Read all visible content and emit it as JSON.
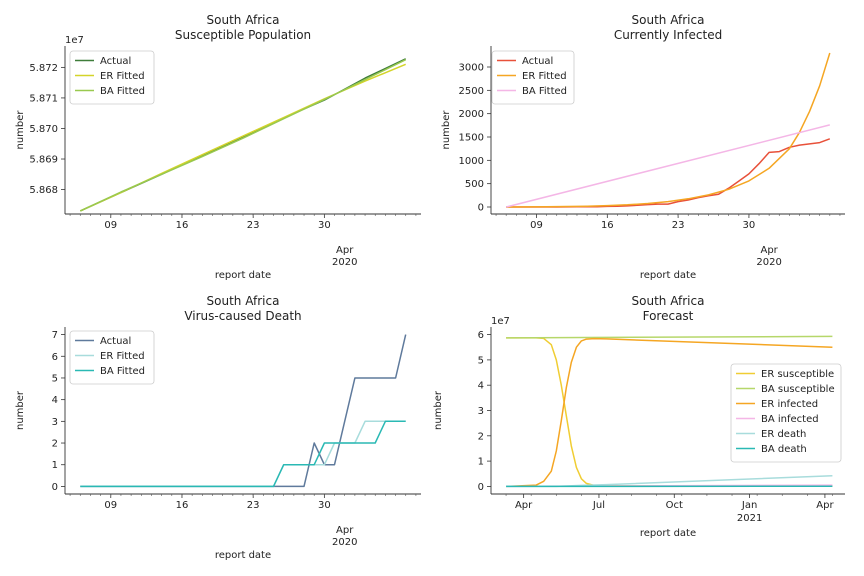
{
  "figure": {
    "width": 864,
    "height": 576
  },
  "chart_data": [
    {
      "id": "susceptible",
      "type": "line",
      "title": [
        "South Africa",
        "Susceptible Population"
      ],
      "xlabel": "report date",
      "ylabel": "number",
      "offset_text": "1e7",
      "x": [
        0,
        32
      ],
      "xlim": [
        -1.5,
        33.5
      ],
      "ylim": [
        5.8672,
        5.8727
      ],
      "xticks": [
        {
          "v": 3,
          "label": "09"
        },
        {
          "v": 10,
          "label": "16"
        },
        {
          "v": 17,
          "label": "23"
        },
        {
          "v": 24,
          "label": "30"
        }
      ],
      "xtick_secondary": {
        "v": 26,
        "label": "Apr",
        "label2": "2020"
      },
      "yticks": [
        {
          "v": 5.868,
          "label": "5.868"
        },
        {
          "v": 5.869,
          "label": "5.869"
        },
        {
          "v": 5.87,
          "label": "5.870"
        },
        {
          "v": 5.871,
          "label": "5.871"
        },
        {
          "v": 5.872,
          "label": "5.872"
        }
      ],
      "legend": {
        "position": "upper-left"
      },
      "series": [
        {
          "name": "Actual",
          "color": "#3f7d3a",
          "x": [
            0,
            4,
            8,
            12,
            16,
            20,
            24,
            28,
            32
          ],
          "y": [
            5.8673,
            5.8679,
            5.8685,
            5.86912,
            5.86973,
            5.87035,
            5.87093,
            5.87165,
            5.87228
          ]
        },
        {
          "name": "ER Fitted",
          "color": "#d4d42a",
          "x": [
            0,
            4,
            8,
            12,
            16,
            20,
            24,
            28,
            32
          ],
          "y": [
            5.8673,
            5.8679,
            5.86853,
            5.86914,
            5.86975,
            5.87036,
            5.87097,
            5.87155,
            5.8721
          ]
        },
        {
          "name": "BA Fitted",
          "color": "#99c94f",
          "x": [
            0,
            4,
            8,
            12,
            16,
            20,
            24,
            28,
            32
          ],
          "y": [
            5.8673,
            5.86792,
            5.8685,
            5.86908,
            5.86968,
            5.87032,
            5.87095,
            5.8716,
            5.87225
          ]
        }
      ]
    },
    {
      "id": "infected",
      "type": "line",
      "title": [
        "South Africa",
        "Currently Infected"
      ],
      "xlabel": "report date",
      "ylabel": "number",
      "offset_text": "",
      "xlim": [
        -1.5,
        33.5
      ],
      "ylim": [
        -150,
        3450
      ],
      "xticks": [
        {
          "v": 3,
          "label": "09"
        },
        {
          "v": 10,
          "label": "16"
        },
        {
          "v": 17,
          "label": "23"
        },
        {
          "v": 24,
          "label": "30"
        }
      ],
      "xtick_secondary": {
        "v": 26,
        "label": "Apr",
        "label2": "2020"
      },
      "yticks": [
        {
          "v": 0,
          "label": "0"
        },
        {
          "v": 500,
          "label": "500"
        },
        {
          "v": 1000,
          "label": "1000"
        },
        {
          "v": 1500,
          "label": "1500"
        },
        {
          "v": 2000,
          "label": "2000"
        },
        {
          "v": 2500,
          "label": "2500"
        },
        {
          "v": 3000,
          "label": "3000"
        }
      ],
      "legend": {
        "position": "upper-left"
      },
      "series": [
        {
          "name": "Actual",
          "color": "#e8513a",
          "x": [
            0,
            1,
            2,
            3,
            4,
            5,
            6,
            7,
            8,
            9,
            10,
            11,
            12,
            13,
            14,
            15,
            16,
            17,
            18,
            19,
            20,
            21,
            22,
            23,
            24,
            25,
            26,
            27,
            28,
            29,
            30,
            31,
            32
          ],
          "y": [
            0,
            0,
            0,
            0,
            0,
            0,
            2,
            6,
            7,
            7,
            13,
            17,
            24,
            38,
            51,
            62,
            62,
            116,
            150,
            202,
            240,
            274,
            402,
            554,
            709,
            927,
            1170,
            1187,
            1280,
            1326,
            1353,
            1380,
            1462
          ]
        },
        {
          "name": "ER Fitted",
          "color": "#f5a623",
          "x": [
            0,
            2,
            4,
            6,
            8,
            10,
            12,
            14,
            16,
            18,
            20,
            22,
            24,
            26,
            28,
            29,
            30,
            31,
            32
          ],
          "y": [
            0,
            2,
            5,
            10,
            18,
            30,
            48,
            75,
            115,
            175,
            260,
            380,
            560,
            830,
            1250,
            1600,
            2050,
            2600,
            3300
          ]
        },
        {
          "name": "BA Fitted",
          "color": "#f4b6e6",
          "x": [
            0,
            32
          ],
          "y": [
            0,
            1760
          ]
        }
      ]
    },
    {
      "id": "death",
      "type": "line",
      "title": [
        "South Africa",
        "Virus-caused Death"
      ],
      "xlabel": "report date",
      "ylabel": "number",
      "offset_text": "",
      "xlim": [
        -1.5,
        33.5
      ],
      "ylim": [
        -0.35,
        7.35
      ],
      "xticks": [
        {
          "v": 3,
          "label": "09"
        },
        {
          "v": 10,
          "label": "16"
        },
        {
          "v": 17,
          "label": "23"
        },
        {
          "v": 24,
          "label": "30"
        }
      ],
      "xtick_secondary": {
        "v": 26,
        "label": "Apr",
        "label2": "2020"
      },
      "yticks": [
        {
          "v": 0,
          "label": "0"
        },
        {
          "v": 1,
          "label": "1"
        },
        {
          "v": 2,
          "label": "2"
        },
        {
          "v": 3,
          "label": "3"
        },
        {
          "v": 4,
          "label": "4"
        },
        {
          "v": 5,
          "label": "5"
        },
        {
          "v": 6,
          "label": "6"
        },
        {
          "v": 7,
          "label": "7"
        }
      ],
      "legend": {
        "position": "upper-left"
      },
      "series": [
        {
          "name": "Actual",
          "color": "#5f7a9c",
          "x": [
            0,
            21,
            22,
            23,
            24,
            25,
            26,
            27,
            28,
            29,
            30,
            31,
            32
          ],
          "y": [
            0,
            0,
            0,
            2,
            1,
            1,
            3,
            5,
            5,
            5,
            5,
            5,
            7
          ]
        },
        {
          "name": "ER Fitted",
          "color": "#a8dcdc",
          "x": [
            0,
            19,
            20,
            21,
            22,
            23,
            24,
            25,
            26,
            27,
            28,
            29,
            30,
            31,
            32
          ],
          "y": [
            0,
            0,
            1,
            1,
            1,
            1,
            1,
            2,
            2,
            2,
            3,
            3,
            3,
            3,
            3
          ]
        },
        {
          "name": "BA Fitted",
          "color": "#2ab9b4",
          "x": [
            0,
            19,
            20,
            21,
            22,
            23,
            24,
            25,
            26,
            27,
            28,
            29,
            30,
            31,
            32
          ],
          "y": [
            0,
            0,
            1,
            1,
            1,
            1,
            2,
            2,
            2,
            2,
            2,
            2,
            3,
            3,
            3
          ]
        }
      ]
    },
    {
      "id": "forecast",
      "type": "line",
      "title": [
        "South Africa",
        "Forecast"
      ],
      "xlabel": "report date",
      "ylabel": "number",
      "offset_text": "1e7",
      "xlim": [
        -0.6,
        13.5
      ],
      "ylim": [
        -0.3,
        6.3
      ],
      "xticks": [
        {
          "v": 0.7,
          "label": "Apr"
        },
        {
          "v": 3.7,
          "label": "Jul"
        },
        {
          "v": 6.7,
          "label": "Oct"
        },
        {
          "v": 9.7,
          "label": "Jan"
        },
        {
          "v": 12.7,
          "label": "Apr"
        }
      ],
      "xtick_secondary": {
        "v": 9.7,
        "label": "2021",
        "label2": ""
      },
      "yticks": [
        {
          "v": 0,
          "label": "0"
        },
        {
          "v": 1,
          "label": "1"
        },
        {
          "v": 2,
          "label": "2"
        },
        {
          "v": 3,
          "label": "3"
        },
        {
          "v": 4,
          "label": "4"
        },
        {
          "v": 5,
          "label": "5"
        },
        {
          "v": 6,
          "label": "6"
        }
      ],
      "legend": {
        "position": "center-right"
      },
      "series": [
        {
          "name": "ER susceptible",
          "color": "#f0cd33",
          "x": [
            0,
            1.2,
            1.5,
            1.8,
            2.0,
            2.2,
            2.4,
            2.6,
            2.8,
            3.0,
            3.2,
            3.5,
            4.0,
            13.0
          ],
          "y": [
            5.87,
            5.87,
            5.85,
            5.6,
            5.0,
            4.0,
            2.8,
            1.6,
            0.75,
            0.3,
            0.12,
            0.04,
            0.02,
            0.02
          ]
        },
        {
          "name": "BA susceptible",
          "color": "#b6d76a",
          "x": [
            0,
            13.0
          ],
          "y": [
            5.87,
            5.93
          ]
        },
        {
          "name": "ER infected",
          "color": "#f5a623",
          "x": [
            0,
            1.2,
            1.5,
            1.8,
            2.0,
            2.2,
            2.4,
            2.6,
            2.8,
            3.0,
            3.2,
            3.5,
            4.0,
            13.0
          ],
          "y": [
            0.0,
            0.05,
            0.2,
            0.6,
            1.4,
            2.6,
            3.9,
            4.9,
            5.5,
            5.75,
            5.82,
            5.84,
            5.83,
            5.5
          ]
        },
        {
          "name": "BA infected",
          "color": "#f4b6e6",
          "x": [
            0,
            13.0
          ],
          "y": [
            0.0,
            0.05
          ]
        },
        {
          "name": "ER death",
          "color": "#a8dcdc",
          "x": [
            0,
            2.0,
            3.0,
            4.0,
            13.0
          ],
          "y": [
            0,
            0,
            0.04,
            0.07,
            0.42
          ]
        },
        {
          "name": "BA death",
          "color": "#2ab9b4",
          "x": [
            0,
            13.0
          ],
          "y": [
            0,
            0.01
          ]
        }
      ]
    }
  ]
}
